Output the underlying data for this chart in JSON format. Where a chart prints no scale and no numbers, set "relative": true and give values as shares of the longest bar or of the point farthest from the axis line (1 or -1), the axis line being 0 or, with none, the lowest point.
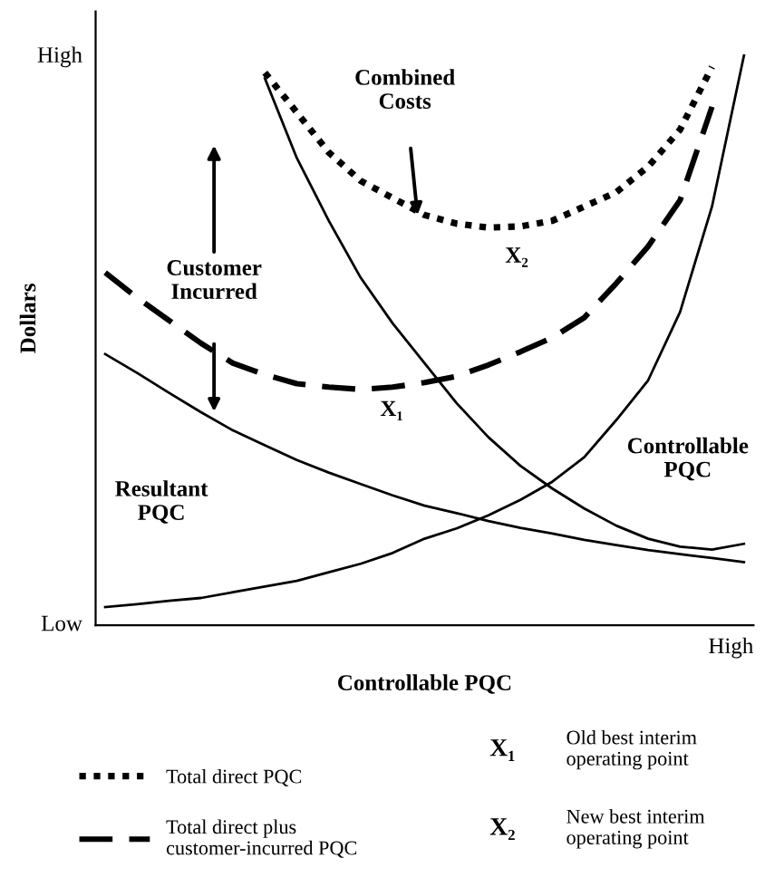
{
  "chart_data": {
    "type": "line",
    "xlabel": "Controllable PQC",
    "ylabel": "Dollars",
    "relative": true,
    "categories": [
      null,
      null,
      null,
      null,
      null,
      null,
      null,
      null,
      null,
      null,
      null,
      null,
      null,
      null,
      null,
      null,
      null,
      null,
      null,
      null,
      null
    ],
    "series": [
      {
        "color": "#000000",
        "line_style": "solid",
        "values": [
          null,
          null,
          null,
          null,
          null,
          0.96,
          0.82,
          0.71,
          0.61,
          0.53,
          0.46,
          0.39,
          0.33,
          0.28,
          0.24,
          0.205,
          0.175,
          0.152,
          0.138,
          0.133,
          0.143
        ]
      },
      {
        "color": "#000000",
        "line_style": "solid",
        "values": [
          0.476,
          0.443,
          0.408,
          0.374,
          0.342,
          0.316,
          0.29,
          0.268,
          0.248,
          0.228,
          0.21,
          0.197,
          0.183,
          0.171,
          0.161,
          0.15,
          0.141,
          0.132,
          0.125,
          0.118,
          0.111
        ]
      },
      {
        "color": "#000000",
        "line_style": "solid",
        "values": [
          0.032,
          0.037,
          0.043,
          0.048,
          0.058,
          0.068,
          0.078,
          0.093,
          0.108,
          0.127,
          0.152,
          0.17,
          0.193,
          0.22,
          0.252,
          0.295,
          0.36,
          0.43,
          0.55,
          0.735,
          1
        ]
      },
      {
        "name": "Total direct PQC",
        "color": "#000000",
        "line_style": "dotted",
        "values": [
          null,
          null,
          null,
          null,
          null,
          0.97,
          0.9,
          0.83,
          0.78,
          0.75,
          0.72,
          0.705,
          0.698,
          0.7,
          0.71,
          0.735,
          0.76,
          0.805,
          0.87,
          0.98,
          null
        ]
      },
      {
        "name": "Total direct plus customer-incurred PQC",
        "color": "#000000",
        "line_style": "dashed",
        "values": [
          0.619,
          0.575,
          0.535,
          0.495,
          0.46,
          0.44,
          0.424,
          0.418,
          0.414,
          0.418,
          0.426,
          0.437,
          0.457,
          0.48,
          0.505,
          0.54,
          0.6,
          0.665,
          0.746,
          0.91,
          null
        ]
      }
    ],
    "annotations": [
      "Combined Costs",
      "Customer Incurred",
      "X₁",
      "X₂",
      "Resultant PQC",
      "Controllable PQC",
      "High",
      "Low",
      "High",
      "X₁",
      "Old best interim operating point",
      "X₂",
      "New best interim operating point"
    ],
    "legend": "bottom"
  }
}
